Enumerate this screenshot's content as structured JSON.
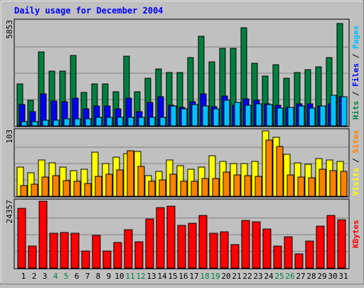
{
  "title": "Daily usage for December 2004",
  "colors": {
    "background": "#c0c0c0",
    "frame_dark": "#808080",
    "title": "#0000ff",
    "hits": "#008040",
    "files": "#0000ff",
    "pages": "#00c0ff",
    "visits": "#ffff00",
    "sites": "#ff8000",
    "kbytes": "#ff0000",
    "weekend_day": "#008040",
    "weekday": "#000000"
  },
  "chart_data": [
    {
      "type": "bar",
      "panel": "hits-files-pages",
      "y_max_label": "5853",
      "ylim": [
        0,
        5853
      ],
      "right_labels": [
        {
          "text": "Hits",
          "color": "#008040"
        },
        {
          "text": " / ",
          "color": "#000000"
        },
        {
          "text": "Files",
          "color": "#0000ff"
        },
        {
          "text": " / ",
          "color": "#000000"
        },
        {
          "text": "Pages",
          "color": "#00c0ff"
        }
      ],
      "categories": [
        "1",
        "2",
        "3",
        "4",
        "5",
        "6",
        "7",
        "8",
        "9",
        "10",
        "11",
        "12",
        "13",
        "14",
        "15",
        "16",
        "17",
        "18",
        "19",
        "20",
        "21",
        "22",
        "23",
        "24",
        "25",
        "26",
        "27",
        "28",
        "29",
        "30",
        "31"
      ],
      "series": [
        {
          "name": "Hits",
          "color": "#008040",
          "values": [
            2350,
            1430,
            4110,
            3060,
            3060,
            3920,
            1870,
            2350,
            2350,
            1900,
            3880,
            1900,
            2630,
            3180,
            2980,
            2980,
            3780,
            5000,
            3560,
            4300,
            4300,
            5460,
            3490,
            2750,
            3390,
            2630,
            2980,
            3140,
            3300,
            3800,
            5700
          ]
        },
        {
          "name": "Files",
          "color": "#0000ff",
          "values": [
            1170,
            780,
            1790,
            1400,
            1360,
            1550,
            940,
            1090,
            1090,
            940,
            1560,
            780,
            1320,
            1630,
            1130,
            1010,
            1360,
            1790,
            1050,
            1660,
            1130,
            1500,
            1440,
            1210,
            1160,
            1010,
            1210,
            1210,
            1100,
            1240,
            1630
          ]
        },
        {
          "name": "Pages",
          "color": "#00c0ff",
          "values": [
            230,
            230,
            310,
            310,
            390,
            390,
            390,
            470,
            470,
            470,
            470,
            470,
            470,
            470,
            1090,
            940,
            1200,
            1090,
            940,
            1440,
            1320,
            1130,
            1240,
            1170,
            980,
            1010,
            1090,
            980,
            1090,
            1710,
            1630
          ]
        }
      ]
    },
    {
      "type": "bar",
      "panel": "visits-sites",
      "y_max_label": "103",
      "ylim": [
        0,
        103
      ],
      "right_labels": [
        {
          "text": "Visits",
          "color": "#ffff00"
        },
        {
          "text": " / ",
          "color": "#000000"
        },
        {
          "text": "Sites",
          "color": "#ff8000"
        }
      ],
      "categories": [
        "1",
        "2",
        "3",
        "4",
        "5",
        "6",
        "7",
        "8",
        "9",
        "10",
        "11",
        "12",
        "13",
        "14",
        "15",
        "16",
        "17",
        "18",
        "19",
        "20",
        "21",
        "22",
        "23",
        "24",
        "25",
        "26",
        "27",
        "28",
        "29",
        "30",
        "31"
      ],
      "series": [
        {
          "name": "Visits",
          "color": "#ffff00",
          "values": [
            46,
            37,
            57,
            53,
            46,
            40,
            43,
            69,
            51,
            62,
            67,
            70,
            33,
            39,
            57,
            48,
            42,
            46,
            64,
            55,
            51,
            51,
            55,
            103,
            93,
            66,
            53,
            50,
            59,
            57,
            55
          ]
        },
        {
          "name": "Sites",
          "color": "#ff8000",
          "values": [
            17,
            19,
            30,
            32,
            25,
            24,
            20,
            31,
            35,
            41,
            72,
            47,
            23,
            26,
            35,
            24,
            24,
            28,
            28,
            38,
            34,
            33,
            31,
            89,
            78,
            34,
            30,
            29,
            43,
            40,
            39
          ]
        }
      ]
    },
    {
      "type": "bar",
      "panel": "kbytes",
      "y_max_label": "24357",
      "ylim": [
        0,
        24357
      ],
      "right_labels": [
        {
          "text": "KBytes",
          "color": "#ff0000"
        }
      ],
      "categories": [
        "1",
        "2",
        "3",
        "4",
        "5",
        "6",
        "7",
        "8",
        "9",
        "10",
        "11",
        "12",
        "13",
        "14",
        "15",
        "16",
        "17",
        "18",
        "19",
        "20",
        "21",
        "22",
        "23",
        "24",
        "25",
        "26",
        "27",
        "28",
        "29",
        "30",
        "31"
      ],
      "series": [
        {
          "name": "KBytes",
          "color": "#ff0000",
          "values": [
            21700,
            8100,
            24357,
            12600,
            13000,
            12600,
            6100,
            11900,
            6100,
            9400,
            14000,
            9500,
            17900,
            22100,
            22500,
            15500,
            16300,
            19100,
            12600,
            13300,
            8600,
            17300,
            16900,
            14200,
            8000,
            11400,
            5300,
            9900,
            15200,
            19300,
            17700
          ]
        }
      ]
    }
  ],
  "x_day_colors": [
    "#000000",
    "#000000",
    "#000000",
    "#008040",
    "#008040",
    "#000000",
    "#000000",
    "#000000",
    "#000000",
    "#000000",
    "#008040",
    "#008040",
    "#000000",
    "#000000",
    "#000000",
    "#000000",
    "#000000",
    "#008040",
    "#008040",
    "#000000",
    "#000000",
    "#000000",
    "#000000",
    "#000000",
    "#008040",
    "#008040",
    "#000000",
    "#000000",
    "#000000",
    "#000000",
    "#000000"
  ]
}
